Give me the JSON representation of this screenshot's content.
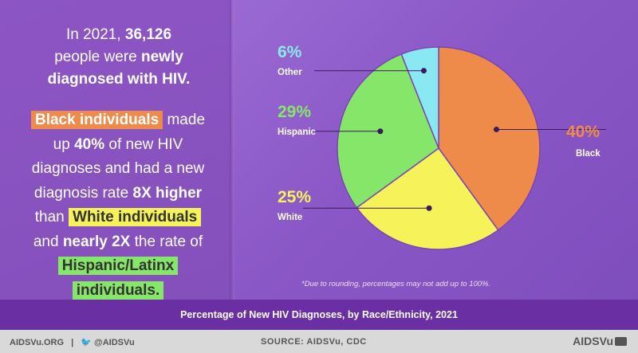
{
  "intro": {
    "line1_pre": "In 2021,",
    "line1_num": "36,126",
    "line2_pre": "people were",
    "line2_bold": "newly",
    "line3_bold": "diagnosed with HIV."
  },
  "body": {
    "hl_black": "Black individuals",
    "t1": "made",
    "t2": "up",
    "pct": "40%",
    "t3": "of new HIV",
    "t4": "diagnoses and had a new",
    "t5": "diagnosis rate",
    "rate": "8X higher",
    "t6": "than",
    "hl_white": "White individuals",
    "t7": "and",
    "nearly": "nearly 2X",
    "t8": "the rate of",
    "hl_hispanic1": "Hispanic/Latinx",
    "hl_hispanic2": "individuals",
    "period": "."
  },
  "chart_data": {
    "type": "pie",
    "title": "Percentage of New HIV Diagnoses, by Race/Ethnicity, 2021",
    "slices": [
      {
        "name": "Black",
        "value": 40,
        "label": "40%",
        "color": "#ee8a4a"
      },
      {
        "name": "White",
        "value": 25,
        "label": "25%",
        "color": "#f5f25a"
      },
      {
        "name": "Hispanic",
        "value": 29,
        "label": "29%",
        "color": "#86e66a"
      },
      {
        "name": "Other",
        "value": 6,
        "label": "6%",
        "color": "#8ae8f2"
      }
    ],
    "footnote": "*Due to rounding, percentages may not add up to 100%."
  },
  "footer": {
    "site": "AIDSVu.ORG",
    "sep": "|",
    "twitter": "@AIDSVu",
    "source": "SOURCE: AIDSVu, CDC",
    "brand": "AIDSVu"
  },
  "colors": {
    "background": "#8a4fc0",
    "title_bar": "#6a2fa3",
    "footer_bar": "#d9d9d9"
  }
}
